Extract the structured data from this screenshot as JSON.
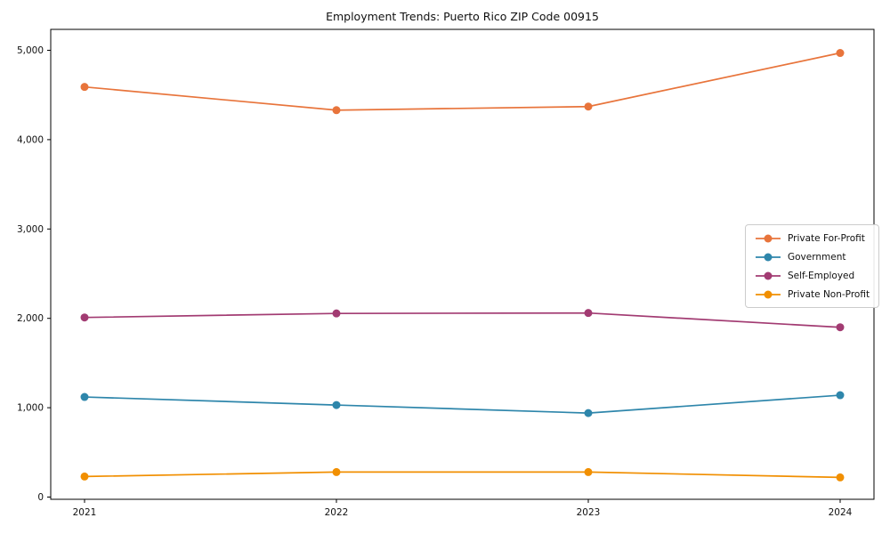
{
  "chart_data": {
    "type": "line",
    "title": "Employment Trends: Puerto Rico ZIP Code 00915",
    "xlabel": "",
    "ylabel": "",
    "categories": [
      "2021",
      "2022",
      "2023",
      "2024"
    ],
    "series": [
      {
        "name": "Private For-Profit",
        "color": "#E8743B",
        "values": [
          4590,
          4330,
          4370,
          4970
        ]
      },
      {
        "name": "Government",
        "color": "#2E86AB",
        "values": [
          1120,
          1030,
          940,
          1140
        ]
      },
      {
        "name": "Self-Employed",
        "color": "#A23B72",
        "values": [
          2010,
          2055,
          2060,
          1900
        ]
      },
      {
        "name": "Private Non-Profit",
        "color": "#F18F01",
        "values": [
          230,
          280,
          280,
          220
        ]
      }
    ],
    "ylim": [
      0,
      5000
    ],
    "yticks": [
      0,
      1000,
      2000,
      3000,
      4000,
      5000
    ],
    "ytick_labels": [
      "0",
      "1,000",
      "2,000",
      "3,000",
      "4,000",
      "5,000"
    ],
    "grid": false,
    "marker": "circle",
    "legend_position": "right-middle",
    "frame_color": "#000000",
    "text_color": "#101010"
  }
}
